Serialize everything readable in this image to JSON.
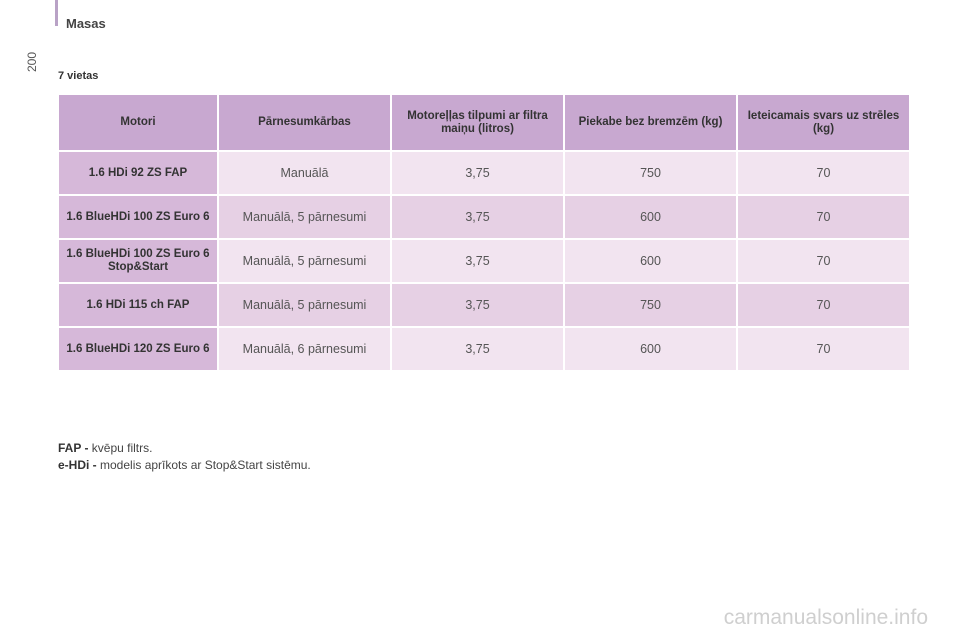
{
  "header": {
    "section_title": "Masas",
    "page_number": "200"
  },
  "subtitle": "7 vietas",
  "table": {
    "headers": [
      "Motori",
      "Pārnesumkārbas",
      "Motoreļļas tilpumi ar filtra maiņu (litros)",
      "Piekabe bez bremzēm (kg)",
      "Ieteicamais svars uz strēles (kg)"
    ],
    "rows": [
      [
        "1.6 HDi 92 ZS FAP",
        "Manuālā",
        "3,75",
        "750",
        "70"
      ],
      [
        "1.6 BlueHDi 100 ZS Euro 6",
        "Manuālā, 5 pārnesumi",
        "3,75",
        "600",
        "70"
      ],
      [
        "1.6 BlueHDi 100 ZS Euro 6 Stop&Start",
        "Manuālā, 5 pārnesumi",
        "3,75",
        "600",
        "70"
      ],
      [
        "1.6 HDi 115 ch FAP",
        "Manuālā, 5 pārnesumi",
        "3,75",
        "750",
        "70"
      ],
      [
        "1.6 BlueHDi 120 ZS Euro 6",
        "Manuālā, 6 pārnesumi",
        "3,75",
        "600",
        "70"
      ]
    ]
  },
  "notes": [
    {
      "term": "FAP -",
      "text": " kvēpu filtrs."
    },
    {
      "term": "e-HDi -",
      "text": " modelis aprīkots ar Stop&Start sistēmu."
    }
  ],
  "watermark": "carmanualsonline.info",
  "colors": {
    "header_cell": "#c8a8d0",
    "engine_cell": "#d6b8d9",
    "row_light": "#f2e4f0",
    "row_dark": "#e6d0e4"
  }
}
